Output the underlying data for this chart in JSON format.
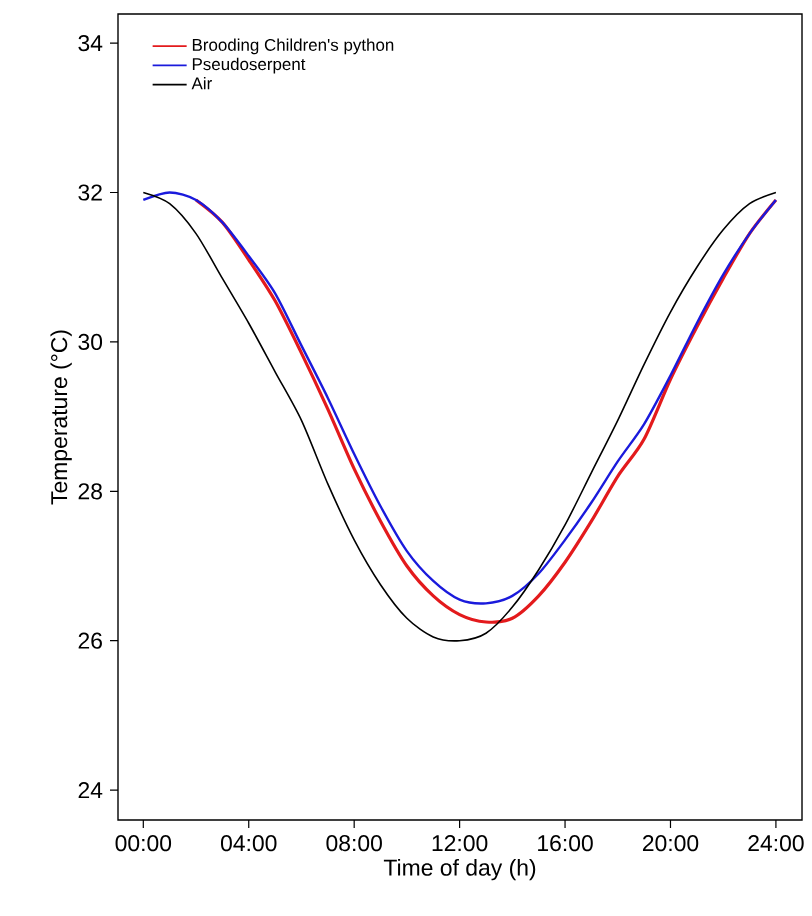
{
  "chart_data": {
    "type": "line",
    "xlabel": "Time of day (h)",
    "ylabel": "Temperature (°C)",
    "x": [
      0,
      1,
      2,
      3,
      4,
      5,
      6,
      7,
      8,
      9,
      10,
      11,
      12,
      13,
      14,
      15,
      16,
      17,
      18,
      19,
      20,
      21,
      22,
      23,
      24
    ],
    "series": [
      {
        "name": "Brooding Children's python",
        "color": "#e31a1c",
        "values": [
          null,
          null,
          31.9,
          31.6,
          31.1,
          30.55,
          29.85,
          29.1,
          28.3,
          27.6,
          27.0,
          26.6,
          26.35,
          26.25,
          26.3,
          26.6,
          27.05,
          27.6,
          28.2,
          28.7,
          29.5,
          30.2,
          30.85,
          31.45,
          31.9
        ]
      },
      {
        "name": "Pseudoserpent",
        "color": "#1a1adc",
        "values": [
          31.9,
          32.0,
          31.9,
          31.6,
          31.15,
          30.65,
          29.95,
          29.25,
          28.5,
          27.8,
          27.2,
          26.8,
          26.55,
          26.5,
          26.6,
          26.9,
          27.35,
          27.85,
          28.4,
          28.9,
          29.55,
          30.25,
          30.9,
          31.45,
          31.9
        ]
      },
      {
        "name": "Air",
        "color": "#000000",
        "values": [
          32.0,
          31.85,
          31.45,
          30.85,
          30.25,
          29.6,
          28.95,
          28.1,
          27.35,
          26.75,
          26.3,
          26.05,
          26.0,
          26.1,
          26.45,
          26.95,
          27.55,
          28.25,
          28.95,
          29.7,
          30.4,
          31.0,
          31.5,
          31.85,
          32.0
        ]
      }
    ],
    "xlim": [
      -0.96,
      24.99
    ],
    "ylim": [
      23.6,
      34.39
    ],
    "xticks": [
      {
        "value": 0,
        "label": "00:00"
      },
      {
        "value": 4,
        "label": "04:00"
      },
      {
        "value": 8,
        "label": "08:00"
      },
      {
        "value": 12,
        "label": "12:00"
      },
      {
        "value": 16,
        "label": "16:00"
      },
      {
        "value": 20,
        "label": "20:00"
      },
      {
        "value": 24,
        "label": "24:00"
      }
    ],
    "yticks": [
      24,
      26,
      28,
      30,
      32,
      34
    ],
    "grid": false,
    "legend": "top left",
    "marker": "none",
    "line_style": "solid"
  }
}
